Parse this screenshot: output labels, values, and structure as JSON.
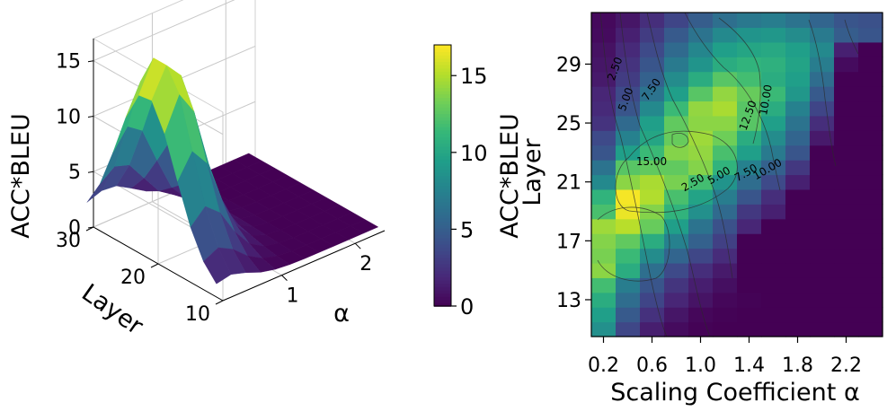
{
  "chart_data": [
    {
      "type": "surface3d",
      "zlabel": "ACC*BLEU",
      "ylabel": "Layer",
      "xlabel": "α",
      "z_ticks": [
        "0",
        "5",
        "10",
        "15"
      ],
      "layer_ticks": [
        "30",
        "20",
        "10"
      ],
      "alpha_ticks": [
        "1",
        "2"
      ],
      "alpha_values": [
        0.2,
        0.4,
        0.6,
        0.8,
        1.0,
        1.2,
        1.4,
        1.6,
        1.8,
        2.0,
        2.2,
        2.4
      ],
      "layer_values": [
        11,
        13,
        15,
        17,
        19,
        21,
        23,
        25,
        27,
        29,
        31
      ],
      "zlim": [
        0,
        17
      ],
      "colormap": "viridis",
      "colorbar": {
        "ticks": [
          "0",
          "5",
          "10",
          "15"
        ],
        "vmin": 0,
        "vmax": 17
      }
    },
    {
      "type": "heatmap",
      "xlabel": "Scaling Coefficient α",
      "ylabel": "Layer",
      "side_label": "ACC*BLEU",
      "x_ticks": [
        "0.2",
        "0.6",
        "1.0",
        "1.4",
        "1.8",
        "2.2"
      ],
      "y_ticks": [
        "13",
        "17",
        "21",
        "25",
        "29"
      ],
      "x_values": [
        0.2,
        0.4,
        0.6,
        0.8,
        1.0,
        1.2,
        1.4,
        1.6,
        1.8,
        2.0,
        2.2,
        2.4
      ],
      "y_values": [
        11,
        12,
        13,
        14,
        15,
        16,
        17,
        18,
        19,
        20,
        21,
        22,
        23,
        24,
        25,
        26,
        27,
        28,
        29,
        30,
        31,
        32
      ],
      "values": [
        [
          8.5,
          3.6,
          1.4,
          0.5,
          0.1,
          0,
          0,
          0,
          0,
          0,
          0,
          0
        ],
        [
          9.5,
          4.8,
          2.4,
          1.0,
          0.3,
          0.1,
          0,
          0,
          0,
          0,
          0,
          0
        ],
        [
          10.5,
          6.0,
          3.5,
          1.8,
          0.9,
          0.3,
          0.1,
          0,
          0,
          0,
          0,
          0
        ],
        [
          11.8,
          7.2,
          4.5,
          2.6,
          1.4,
          0.7,
          0,
          0,
          0,
          0,
          0,
          0
        ],
        [
          14.0,
          10.5,
          6.2,
          3.8,
          2.2,
          1.2,
          0,
          0,
          0,
          0,
          0,
          0
        ],
        [
          13.5,
          11.5,
          8.2,
          5.5,
          3.6,
          2.1,
          0,
          0,
          0,
          0,
          0,
          0
        ],
        [
          13.8,
          12.8,
          10.5,
          7.5,
          5.2,
          3.2,
          0,
          0,
          0,
          0,
          0,
          0
        ],
        [
          14.5,
          15.2,
          13.0,
          9.5,
          6.5,
          4.2,
          1.8,
          0,
          0,
          0,
          0,
          0
        ],
        [
          12.0,
          16.5,
          13.8,
          11.0,
          8.5,
          5.8,
          2.8,
          1.5,
          0,
          0,
          0,
          0
        ],
        [
          11.0,
          16.8,
          15.0,
          12.0,
          9.8,
          7.2,
          4.5,
          2.2,
          0,
          0,
          0,
          0
        ],
        [
          8.0,
          14.0,
          14.8,
          13.5,
          11.8,
          8.8,
          6.0,
          3.8,
          1.5,
          0,
          0,
          0
        ],
        [
          6.5,
          12.5,
          12.8,
          12.8,
          13.8,
          11.0,
          7.5,
          5.2,
          2.8,
          0,
          0,
          0
        ],
        [
          4.5,
          9.5,
          11.5,
          13.8,
          14.2,
          12.0,
          9.5,
          7.0,
          4.5,
          0,
          0,
          0
        ],
        [
          3.8,
          7.5,
          10.0,
          13.0,
          14.5,
          13.2,
          10.5,
          8.2,
          5.5,
          1.2,
          0,
          0
        ],
        [
          2.5,
          5.8,
          9.5,
          12.8,
          14.0,
          14.0,
          12.5,
          9.5,
          6.5,
          2.2,
          0,
          0
        ],
        [
          2.0,
          4.5,
          8.0,
          11.5,
          14.2,
          14.8,
          12.5,
          10.5,
          7.5,
          3.5,
          0,
          0
        ],
        [
          1.8,
          3.8,
          6.5,
          9.5,
          12.5,
          14.2,
          13.0,
          11.5,
          9.0,
          4.8,
          0,
          0
        ],
        [
          1.2,
          3.0,
          5.2,
          8.2,
          10.5,
          12.5,
          11.8,
          10.5,
          9.5,
          6.0,
          0,
          0
        ],
        [
          1.0,
          2.5,
          4.5,
          7.0,
          8.8,
          10.5,
          11.0,
          10.8,
          9.8,
          7.2,
          0.5,
          0
        ],
        [
          0.8,
          2.0,
          3.8,
          5.8,
          7.8,
          9.5,
          10.0,
          10.2,
          9.5,
          8.0,
          1.5,
          0
        ],
        [
          0.5,
          1.5,
          3.0,
          4.8,
          6.5,
          8.0,
          8.8,
          9.0,
          8.2,
          7.0,
          5.0,
          4.5
        ],
        [
          0.4,
          1.0,
          2.2,
          3.5,
          5.0,
          6.2,
          6.8,
          7.2,
          6.5,
          5.5,
          4.5,
          4.2
        ]
      ],
      "contour_labels": [
        "2.50",
        "5.00",
        "7.50",
        "10.00",
        "12.50",
        "15.00",
        "2.50",
        "5.00",
        "7.50",
        "10.00"
      ],
      "colormap": "viridis",
      "vmin": 0,
      "vmax": 17
    }
  ]
}
